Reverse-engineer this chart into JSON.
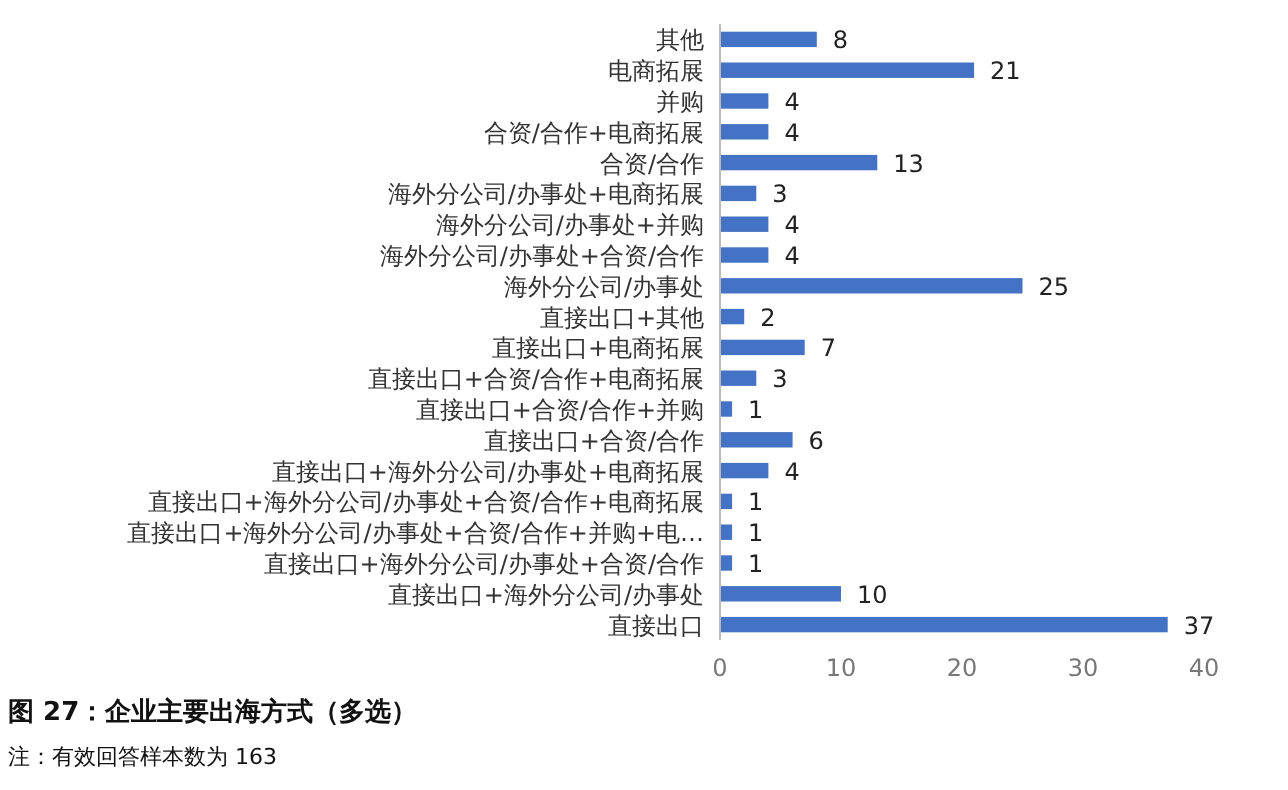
{
  "chart_data": {
    "type": "bar",
    "orientation": "horizontal",
    "title": "图 27：企业主要出海方式（多选）",
    "annotations": [
      "注：有效回答样本数为 163"
    ],
    "categories": [
      "其他",
      "电商拓展",
      "并购",
      "合资/合作+电商拓展",
      "合资/合作",
      "海外分公司/办事处+电商拓展",
      "海外分公司/办事处+并购",
      "海外分公司/办事处+合资/合作",
      "海外分公司/办事处",
      "直接出口+其他",
      "直接出口+电商拓展",
      "直接出口+合资/合作+电商拓展",
      "直接出口+合资/合作+并购",
      "直接出口+合资/合作",
      "直接出口+海外分公司/办事处+电商拓展",
      "直接出口+海外分公司/办事处+合资/合作+电商拓展",
      "直接出口+海外分公司/办事处+合资/合作+并购+电…",
      "直接出口+海外分公司/办事处+合资/合作",
      "直接出口+海外分公司/办事处",
      "直接出口"
    ],
    "values": [
      8,
      21,
      4,
      4,
      13,
      3,
      4,
      4,
      25,
      2,
      7,
      3,
      1,
      6,
      4,
      1,
      1,
      1,
      10,
      37
    ],
    "color": "#4472c4",
    "xlim": [
      0,
      40
    ],
    "xticks": [
      0,
      10,
      20,
      30,
      40
    ],
    "grid": false,
    "data_labels": true
  }
}
